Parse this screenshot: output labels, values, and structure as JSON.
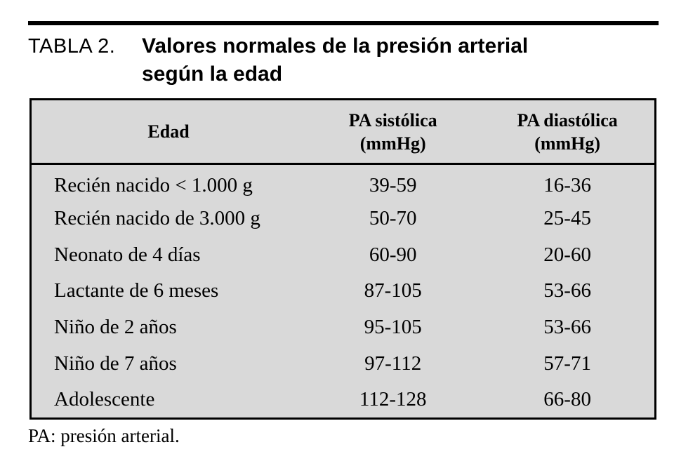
{
  "colors": {
    "page-bg": "#ffffff",
    "table-bg": "#d9d9d9",
    "ink": "#000000"
  },
  "caption": {
    "label": "TABLA 2.",
    "title": "Valores normales de la presión arterial según la edad"
  },
  "table": {
    "columns": [
      {
        "line1": "Edad",
        "line2": ""
      },
      {
        "line1": "PA sistólica",
        "line2": "(mmHg)"
      },
      {
        "line1": "PA diastólica",
        "line2": "(mmHg)"
      }
    ],
    "rows": [
      {
        "edad": "Recién nacido < 1.000 g",
        "sistolica": "39-59",
        "diastolica": "16-36"
      },
      {
        "edad": "Recién nacido de 3.000 g",
        "sistolica": "50-70",
        "diastolica": "25-45"
      },
      {
        "edad": "Neonato de 4 días",
        "sistolica": "60-90",
        "diastolica": "20-60"
      },
      {
        "edad": "Lactante de 6 meses",
        "sistolica": "87-105",
        "diastolica": "53-66"
      },
      {
        "edad": "Niño de 2 años",
        "sistolica": "95-105",
        "diastolica": "53-66"
      },
      {
        "edad": "Niño de 7 años",
        "sistolica": "97-112",
        "diastolica": "57-71"
      },
      {
        "edad": "Adolescente",
        "sistolica": "112-128",
        "diastolica": "66-80"
      }
    ]
  },
  "footnote": "PA: presión arterial."
}
